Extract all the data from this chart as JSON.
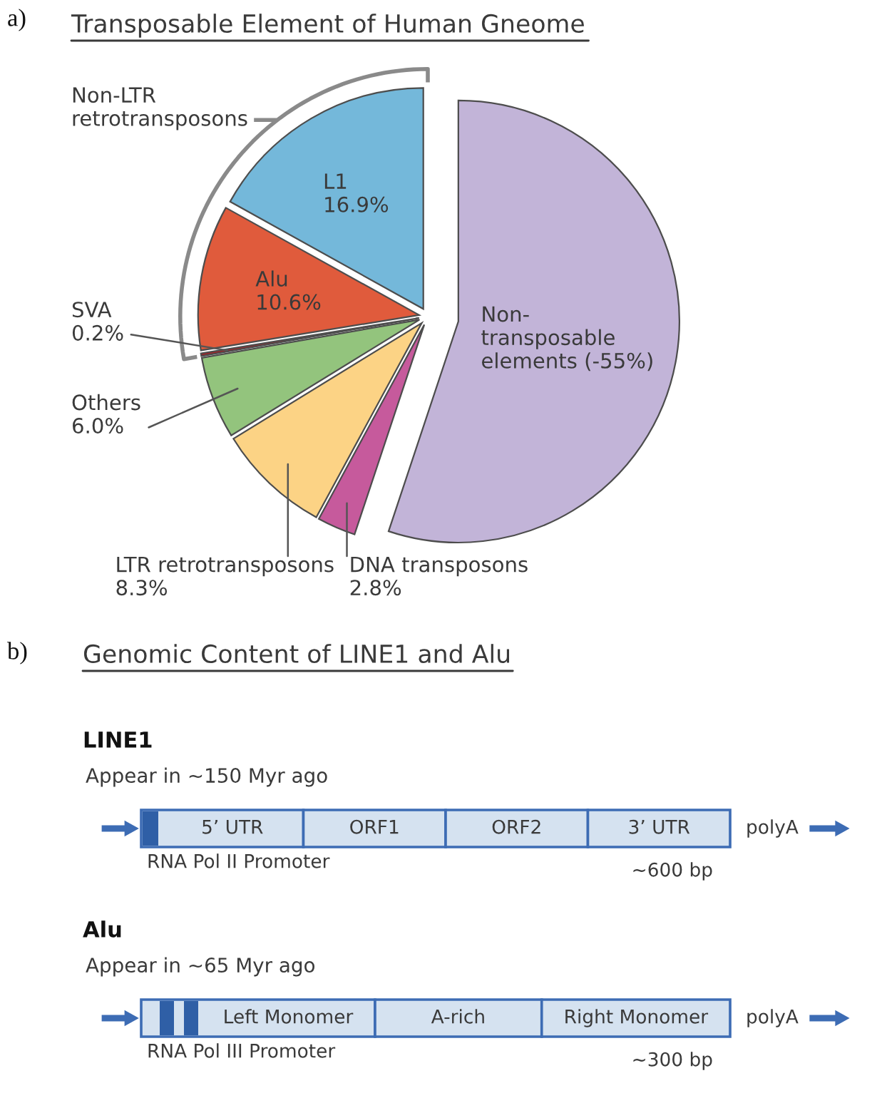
{
  "chart_data": [
    {
      "type": "pie",
      "title": "Transposable Element of Human Gneome",
      "categories": [
        "L1",
        "Alu",
        "SVA",
        "Others",
        "LTR retrotransposons",
        "DNA transposons",
        "Non-\ntransposable\nelements (-55%)"
      ],
      "values": [
        16.9,
        10.6,
        0.2,
        6.0,
        8.3,
        2.8,
        55
      ],
      "value_labels": [
        "16.9%",
        "10.6%",
        "0.2%",
        "6.0%",
        "8.3%",
        "2.8%",
        null
      ],
      "colors": [
        "#74b8da",
        "#e05b3c",
        "#a51f24",
        "#93c47d",
        "#fcd385",
        "#c65a9c",
        "#c2b4d8"
      ],
      "annotations": [
        "a)",
        "Non-LTR\nretrotransposons"
      ]
    },
    {
      "type": "other",
      "title": "Genomic Content of LINE1 and Alu",
      "annotations": [
        "b)"
      ]
    },
    {
      "type": "other",
      "title": "LINE1",
      "subtitle": "Appear in ~150 Myr ago",
      "categories": [
        "5’ UTR",
        "ORF1",
        "ORF2",
        "3’ UTR"
      ],
      "color": "#d5e2f0",
      "annotations": [
        "RNA Pol II Promoter",
        "~600 bp",
        "polyA"
      ]
    },
    {
      "type": "other",
      "title": "Alu",
      "subtitle": "Appear in ~65 Myr ago",
      "categories": [
        "Left Monomer",
        "A-rich",
        "Right Monomer"
      ],
      "color": "#d5e2f0",
      "annotations": [
        "RNA Pol III Promoter",
        "~300 bp",
        "polyA"
      ]
    }
  ]
}
